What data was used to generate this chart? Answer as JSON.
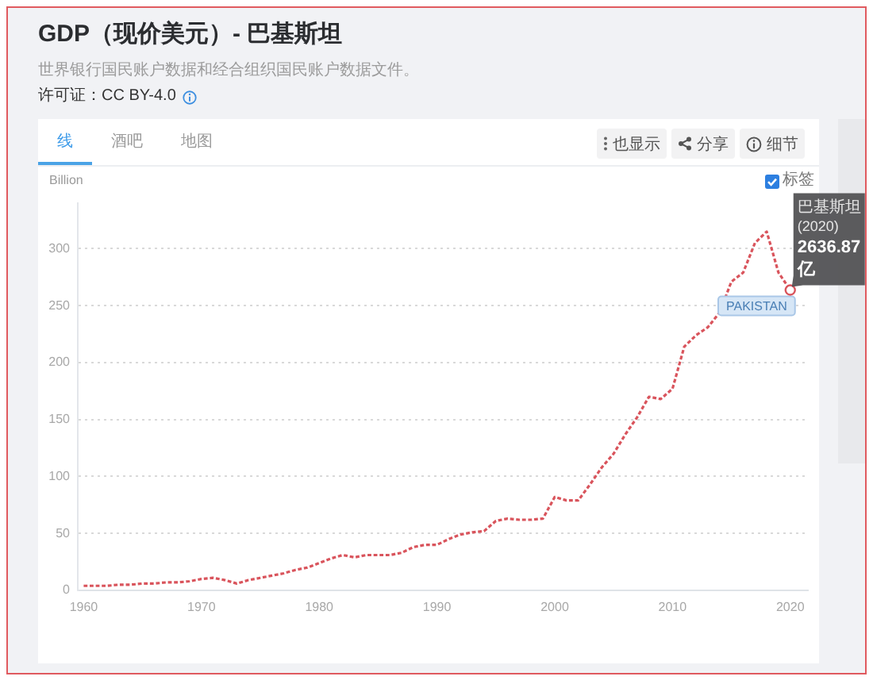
{
  "chart_data": {
    "type": "line",
    "title": "GDP（现价美元）- 巴基斯坦",
    "ylabel": "Billion",
    "x": [
      1960,
      1961,
      1962,
      1963,
      1964,
      1965,
      1966,
      1967,
      1968,
      1969,
      1970,
      1971,
      1972,
      1973,
      1974,
      1975,
      1976,
      1977,
      1978,
      1979,
      1980,
      1981,
      1982,
      1983,
      1984,
      1985,
      1986,
      1987,
      1988,
      1989,
      1990,
      1991,
      1992,
      1993,
      1994,
      1995,
      1996,
      1997,
      1998,
      1999,
      2000,
      2001,
      2002,
      2003,
      2004,
      2005,
      2006,
      2007,
      2008,
      2009,
      2010,
      2011,
      2012,
      2013,
      2014,
      2015,
      2016,
      2017,
      2018,
      2019,
      2020
    ],
    "series": [
      {
        "name": "PAKISTAN",
        "color": "#d9545c",
        "values": [
          4,
          4,
          4,
          5,
          5,
          6,
          6,
          7,
          7,
          8,
          10,
          11,
          9,
          6,
          9,
          11,
          13,
          15,
          18,
          20,
          24,
          28,
          31,
          29,
          31,
          31,
          31,
          33,
          38,
          40,
          40,
          45,
          49,
          51,
          52,
          61,
          63,
          62,
          62,
          63,
          82,
          79,
          79,
          93,
          108,
          120,
          137,
          152,
          170,
          168,
          177,
          214,
          224,
          231,
          244,
          271,
          279,
          305,
          315,
          279,
          263.687
        ]
      }
    ],
    "xlim": [
      1959.5,
      2021.5
    ],
    "xticks": [
      1960,
      1970,
      1980,
      1990,
      2000,
      2010,
      2020
    ],
    "ylim": [
      0,
      340
    ],
    "yticks": [
      0,
      50,
      100,
      150,
      200,
      250,
      300
    ],
    "grid": "y",
    "marker": "none",
    "line_style": "dashed",
    "annotations": [
      "世界银行国民账户数据和经合组织国民账户数据文件。",
      "许可证：CC BY-4.0",
      "线",
      "酒吧",
      "地图",
      "也显示",
      "分享",
      "细节",
      "标签",
      {
        "text": "巴基斯坦 (2020) 2636.87 亿",
        "x": 2020,
        "y": 263.687
      }
    ]
  }
}
